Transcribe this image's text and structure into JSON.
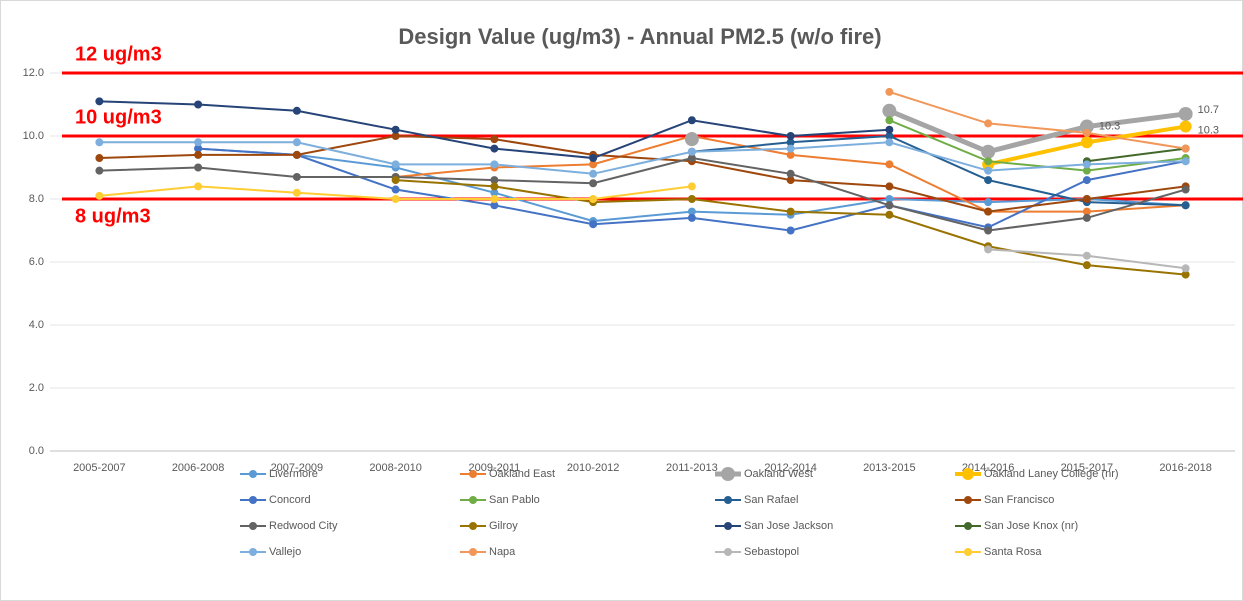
{
  "chart_data": {
    "type": "line",
    "title": "Design Value (ug/m3) - Annual PM2.5 (w/o fire)",
    "categories": [
      "2005-2007",
      "2006-2008",
      "2007-2009",
      "2008-2010",
      "2009-2011",
      "2010-2012",
      "2011-2013",
      "2012-2014",
      "2013-2015",
      "2014-2016",
      "2015-2017",
      "2016-2018"
    ],
    "ylim": [
      0,
      12
    ],
    "yticks": [
      {
        "value": 0,
        "label": "0.0"
      },
      {
        "value": 2,
        "label": "2.0"
      },
      {
        "value": 4,
        "label": "4.0"
      },
      {
        "value": 6,
        "label": "6.0"
      },
      {
        "value": 8,
        "label": "8.0"
      },
      {
        "value": 10,
        "label": "10.0"
      },
      {
        "value": 12,
        "label": "12.0"
      }
    ],
    "grid": true,
    "reference_lines": [
      {
        "value": 12,
        "label": "12 ug/m3",
        "color": "#ff0000"
      },
      {
        "value": 10,
        "label": "10 ug/m3",
        "color": "#ff0000"
      },
      {
        "value": 8,
        "label": "8 ug/m3",
        "color": "#ff0000"
      }
    ],
    "legend": "bottom",
    "series": [
      {
        "name": "Livermore",
        "color": "#5b9bd5",
        "width": 2,
        "values": [
          null,
          9.6,
          9.4,
          9.0,
          8.2,
          7.3,
          7.6,
          7.5,
          8.0,
          7.9,
          8.0,
          7.8
        ]
      },
      {
        "name": "Oakland East",
        "color": "#ed7d31",
        "width": 2,
        "values": [
          null,
          null,
          null,
          8.7,
          9.0,
          9.1,
          10.0,
          9.4,
          9.1,
          7.6,
          7.6,
          7.8
        ]
      },
      {
        "name": "Oakland West",
        "color": "#a5a5a5",
        "width": 5,
        "values": [
          null,
          null,
          null,
          null,
          null,
          null,
          9.9,
          null,
          10.8,
          9.5,
          10.3,
          10.7
        ],
        "value_labels": [
          null,
          null,
          null,
          null,
          null,
          null,
          null,
          null,
          null,
          null,
          "10.3",
          "10.7"
        ]
      },
      {
        "name": "Oakland Laney College (nr)",
        "color": "#ffc000",
        "width": 4,
        "values": [
          null,
          null,
          null,
          null,
          null,
          null,
          null,
          null,
          null,
          9.1,
          9.8,
          10.3
        ],
        "value_labels": [
          null,
          null,
          null,
          null,
          null,
          null,
          null,
          null,
          null,
          null,
          null,
          "10.3"
        ]
      },
      {
        "name": "Concord",
        "color": "#4472c4",
        "width": 2,
        "values": [
          null,
          9.6,
          9.4,
          8.3,
          7.8,
          7.2,
          7.4,
          7.0,
          7.8,
          7.1,
          8.6,
          9.2
        ]
      },
      {
        "name": "San Pablo",
        "color": "#70ad47",
        "width": 2,
        "values": [
          null,
          null,
          null,
          null,
          null,
          null,
          null,
          null,
          10.5,
          9.2,
          8.9,
          9.3
        ]
      },
      {
        "name": "San Rafael",
        "color": "#255e91",
        "width": 2,
        "values": [
          null,
          null,
          null,
          null,
          null,
          null,
          9.5,
          9.8,
          10.0,
          8.6,
          7.9,
          7.8
        ]
      },
      {
        "name": "San Francisco",
        "color": "#9e480e",
        "width": 2,
        "values": [
          9.3,
          9.4,
          9.4,
          10.0,
          9.9,
          9.4,
          9.2,
          8.6,
          8.4,
          7.6,
          8.0,
          8.4
        ]
      },
      {
        "name": "Redwood City",
        "color": "#636363",
        "width": 2,
        "values": [
          8.9,
          9.0,
          8.7,
          8.7,
          8.6,
          8.5,
          9.3,
          8.8,
          7.8,
          7.0,
          7.4,
          8.3
        ]
      },
      {
        "name": "Gilroy",
        "color": "#997300",
        "width": 2,
        "values": [
          null,
          null,
          null,
          8.6,
          8.4,
          7.9,
          8.0,
          7.6,
          7.5,
          6.5,
          5.9,
          5.6
        ]
      },
      {
        "name": "San Jose Jackson",
        "color": "#264478",
        "width": 2,
        "values": [
          11.1,
          11.0,
          10.8,
          10.2,
          9.6,
          9.3,
          10.5,
          10.0,
          10.2,
          null,
          null,
          null
        ]
      },
      {
        "name": "San Jose Knox (nr)",
        "color": "#43682b",
        "width": 2,
        "values": [
          null,
          null,
          null,
          null,
          null,
          null,
          null,
          null,
          null,
          null,
          9.2,
          9.6
        ]
      },
      {
        "name": "Vallejo",
        "color": "#7cafdd",
        "width": 2,
        "values": [
          9.8,
          9.8,
          9.8,
          9.1,
          9.1,
          8.8,
          9.5,
          9.6,
          9.8,
          8.9,
          9.1,
          9.2
        ]
      },
      {
        "name": "Napa",
        "color": "#f1975a",
        "width": 2,
        "values": [
          null,
          null,
          null,
          null,
          null,
          null,
          null,
          null,
          11.4,
          10.4,
          10.1,
          9.6
        ]
      },
      {
        "name": "Sebastopol",
        "color": "#b7b7b7",
        "width": 2,
        "values": [
          null,
          null,
          null,
          null,
          null,
          null,
          null,
          null,
          null,
          6.4,
          6.2,
          5.8
        ]
      },
      {
        "name": "Santa Rosa",
        "color": "#ffcd33",
        "width": 2,
        "values": [
          8.1,
          8.4,
          8.2,
          8.0,
          8.0,
          8.0,
          8.4,
          null,
          null,
          null,
          null,
          null
        ]
      }
    ]
  }
}
